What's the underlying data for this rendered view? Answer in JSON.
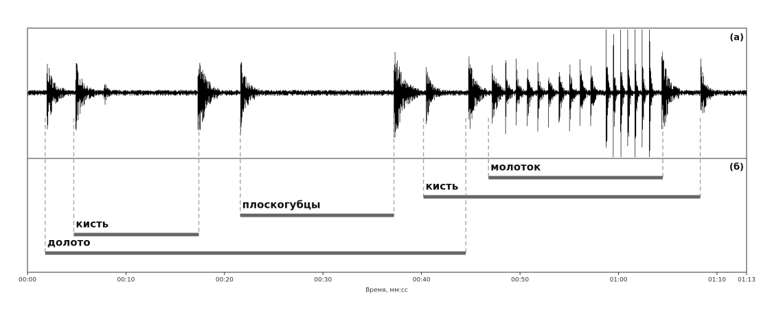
{
  "chart_data": {
    "type": "timeline",
    "panel_labels": [
      "(а)",
      "(б)"
    ],
    "xlabel": "Время, мм:сс",
    "xlim": [
      0,
      73
    ],
    "xticks": [
      {
        "value": 0,
        "label": "00:00"
      },
      {
        "value": 10,
        "label": "00:10"
      },
      {
        "value": 20,
        "label": "00:20"
      },
      {
        "value": 30,
        "label": "00:30"
      },
      {
        "value": 40,
        "label": "00:40"
      },
      {
        "value": 50,
        "label": "00:50"
      },
      {
        "value": 60,
        "label": "01:00"
      },
      {
        "value": 70,
        "label": "01:10"
      },
      {
        "value": 73,
        "label": "01:13"
      }
    ],
    "color": "#666666",
    "tasks": [
      {
        "name": "долото",
        "start": 1.8,
        "end": 44.5
      },
      {
        "name": "кисть",
        "start": 4.7,
        "end": 17.4
      },
      {
        "name": "плоскогубцы",
        "start": 21.6,
        "end": 37.2
      },
      {
        "name": "кисть",
        "start": 40.2,
        "end": 68.3
      },
      {
        "name": "молоток",
        "start": 46.8,
        "end": 64.5
      }
    ]
  }
}
